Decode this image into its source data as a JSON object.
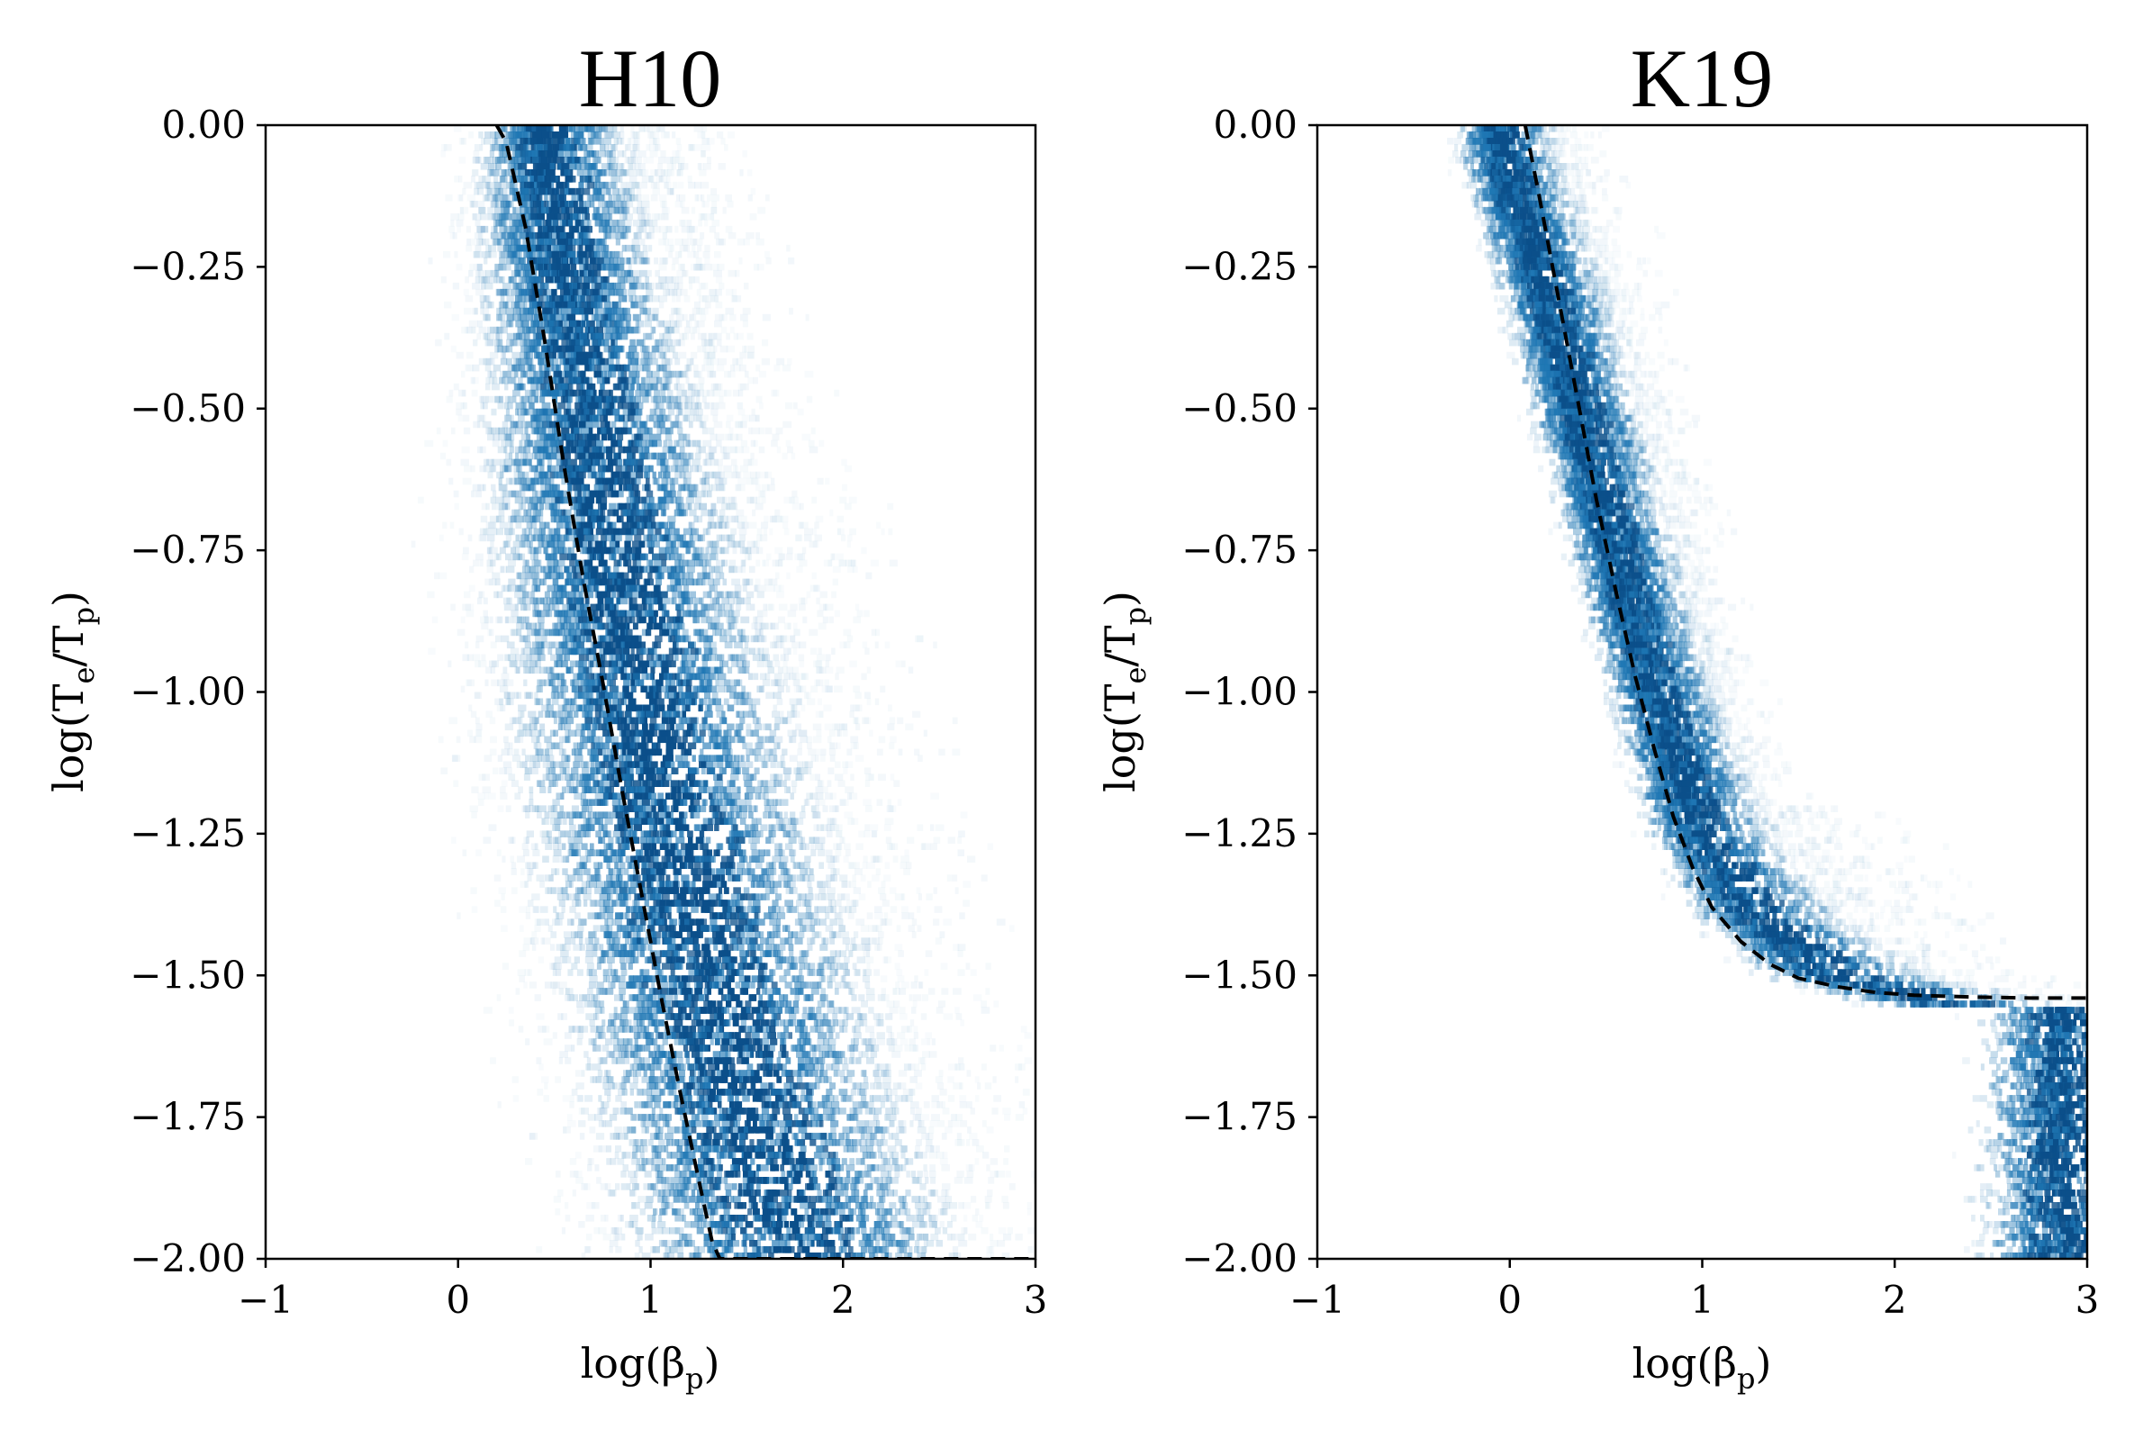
{
  "colors": {
    "density": "#1f77b4",
    "dense": "#0b4f8a",
    "fit_line": "#000000",
    "axes": "#000000",
    "background": "#ffffff"
  },
  "chart_data": [
    {
      "type": "heatmap",
      "title": "H10",
      "xlabel": "log(β_p)",
      "ylabel": "log(T_e/T_p)",
      "xlabel_parts": {
        "main": "log(β",
        "sub": "p",
        "end": ")"
      },
      "ylabel_parts": {
        "main": "log(T",
        "sub1": "e",
        "mid": "/T",
        "sub2": "p",
        "end": ")"
      },
      "xlim": [
        -1,
        3
      ],
      "ylim": [
        -2.0,
        0.0
      ],
      "xticks": [
        -1,
        0,
        1,
        2,
        3
      ],
      "xtick_labels": [
        "−1",
        "0",
        "1",
        "2",
        "3"
      ],
      "yticks": [
        0.0,
        -0.25,
        -0.5,
        -0.75,
        -1.0,
        -1.25,
        -1.5,
        -1.75,
        -2.0
      ],
      "ytick_labels": [
        "0.00",
        "−0.25",
        "−0.50",
        "−0.75",
        "−1.00",
        "−1.25",
        "−1.50",
        "−1.75",
        "−2.00"
      ],
      "grid": false,
      "density_ridge": [
        {
          "y": 0.0,
          "x": 0.45,
          "w": 0.28
        },
        {
          "y": -0.25,
          "x": 0.55,
          "w": 0.35
        },
        {
          "y": -0.5,
          "x": 0.68,
          "w": 0.42
        },
        {
          "y": -0.75,
          "x": 0.8,
          "w": 0.5
        },
        {
          "y": -1.0,
          "x": 0.95,
          "w": 0.55
        },
        {
          "y": -1.25,
          "x": 1.1,
          "w": 0.58
        },
        {
          "y": -1.5,
          "x": 1.3,
          "w": 0.6
        },
        {
          "y": -1.75,
          "x": 1.5,
          "w": 0.62
        },
        {
          "y": -2.0,
          "x": 1.75,
          "w": 0.65
        }
      ],
      "fit_curve": {
        "style": "dashed",
        "x": [
          0.2,
          0.25,
          0.35,
          0.45,
          0.55,
          0.65,
          0.75,
          0.85,
          0.95,
          1.05,
          1.15,
          1.25,
          1.32,
          1.36,
          1.5,
          2.0,
          2.5,
          3.0
        ],
        "y": [
          0.0,
          -0.03,
          -0.18,
          -0.38,
          -0.6,
          -0.8,
          -0.98,
          -1.17,
          -1.35,
          -1.53,
          -1.7,
          -1.86,
          -1.97,
          -2.0,
          -2.0,
          -2.0,
          -2.0,
          -2.0
        ]
      }
    },
    {
      "type": "heatmap",
      "title": "K19",
      "xlabel": "log(β_p)",
      "ylabel": "log(T_e/T_p)",
      "xlabel_parts": {
        "main": "log(β",
        "sub": "p",
        "end": ")"
      },
      "ylabel_parts": {
        "main": "log(T",
        "sub1": "e",
        "mid": "/T",
        "sub2": "p",
        "end": ")"
      },
      "xlim": [
        -1,
        3
      ],
      "ylim": [
        -2.0,
        0.0
      ],
      "xticks": [
        -1,
        0,
        1,
        2,
        3
      ],
      "xtick_labels": [
        "−1",
        "0",
        "1",
        "2",
        "3"
      ],
      "yticks": [
        0.0,
        -0.25,
        -0.5,
        -0.75,
        -1.0,
        -1.25,
        -1.5,
        -1.75,
        -2.0
      ],
      "ytick_labels": [
        "0.00",
        "−0.25",
        "−0.50",
        "−0.75",
        "−1.00",
        "−1.25",
        "−1.50",
        "−1.75",
        "−2.00"
      ],
      "grid": false,
      "density_ridge": [
        {
          "y": -0.05,
          "x": -0.05,
          "w": 0.2
        },
        {
          "y": -0.25,
          "x": 0.15,
          "w": 0.22
        },
        {
          "y": -0.5,
          "x": 0.35,
          "w": 0.22
        },
        {
          "y": -0.75,
          "x": 0.55,
          "w": 0.22
        },
        {
          "y": -1.0,
          "x": 0.75,
          "w": 0.22
        },
        {
          "y": -1.25,
          "x": 1.0,
          "w": 0.25
        },
        {
          "y": -1.4,
          "x": 1.3,
          "w": 0.3
        },
        {
          "y": -1.5,
          "x": 1.7,
          "w": 0.35
        },
        {
          "y": -1.55,
          "x": 2.3,
          "w": 0.4
        },
        {
          "y": -1.55,
          "x": 2.9,
          "w": 0.4
        }
      ],
      "fit_curve": {
        "style": "dashed",
        "x": [
          0.08,
          0.15,
          0.25,
          0.35,
          0.45,
          0.55,
          0.65,
          0.75,
          0.85,
          0.95,
          1.05,
          1.2,
          1.35,
          1.5,
          1.7,
          1.9,
          2.1,
          2.4,
          2.7,
          3.0
        ],
        "y": [
          0.0,
          -0.12,
          -0.3,
          -0.48,
          -0.66,
          -0.82,
          -0.97,
          -1.1,
          -1.22,
          -1.31,
          -1.38,
          -1.44,
          -1.48,
          -1.505,
          -1.52,
          -1.53,
          -1.535,
          -1.538,
          -1.54,
          -1.54
        ]
      }
    }
  ]
}
